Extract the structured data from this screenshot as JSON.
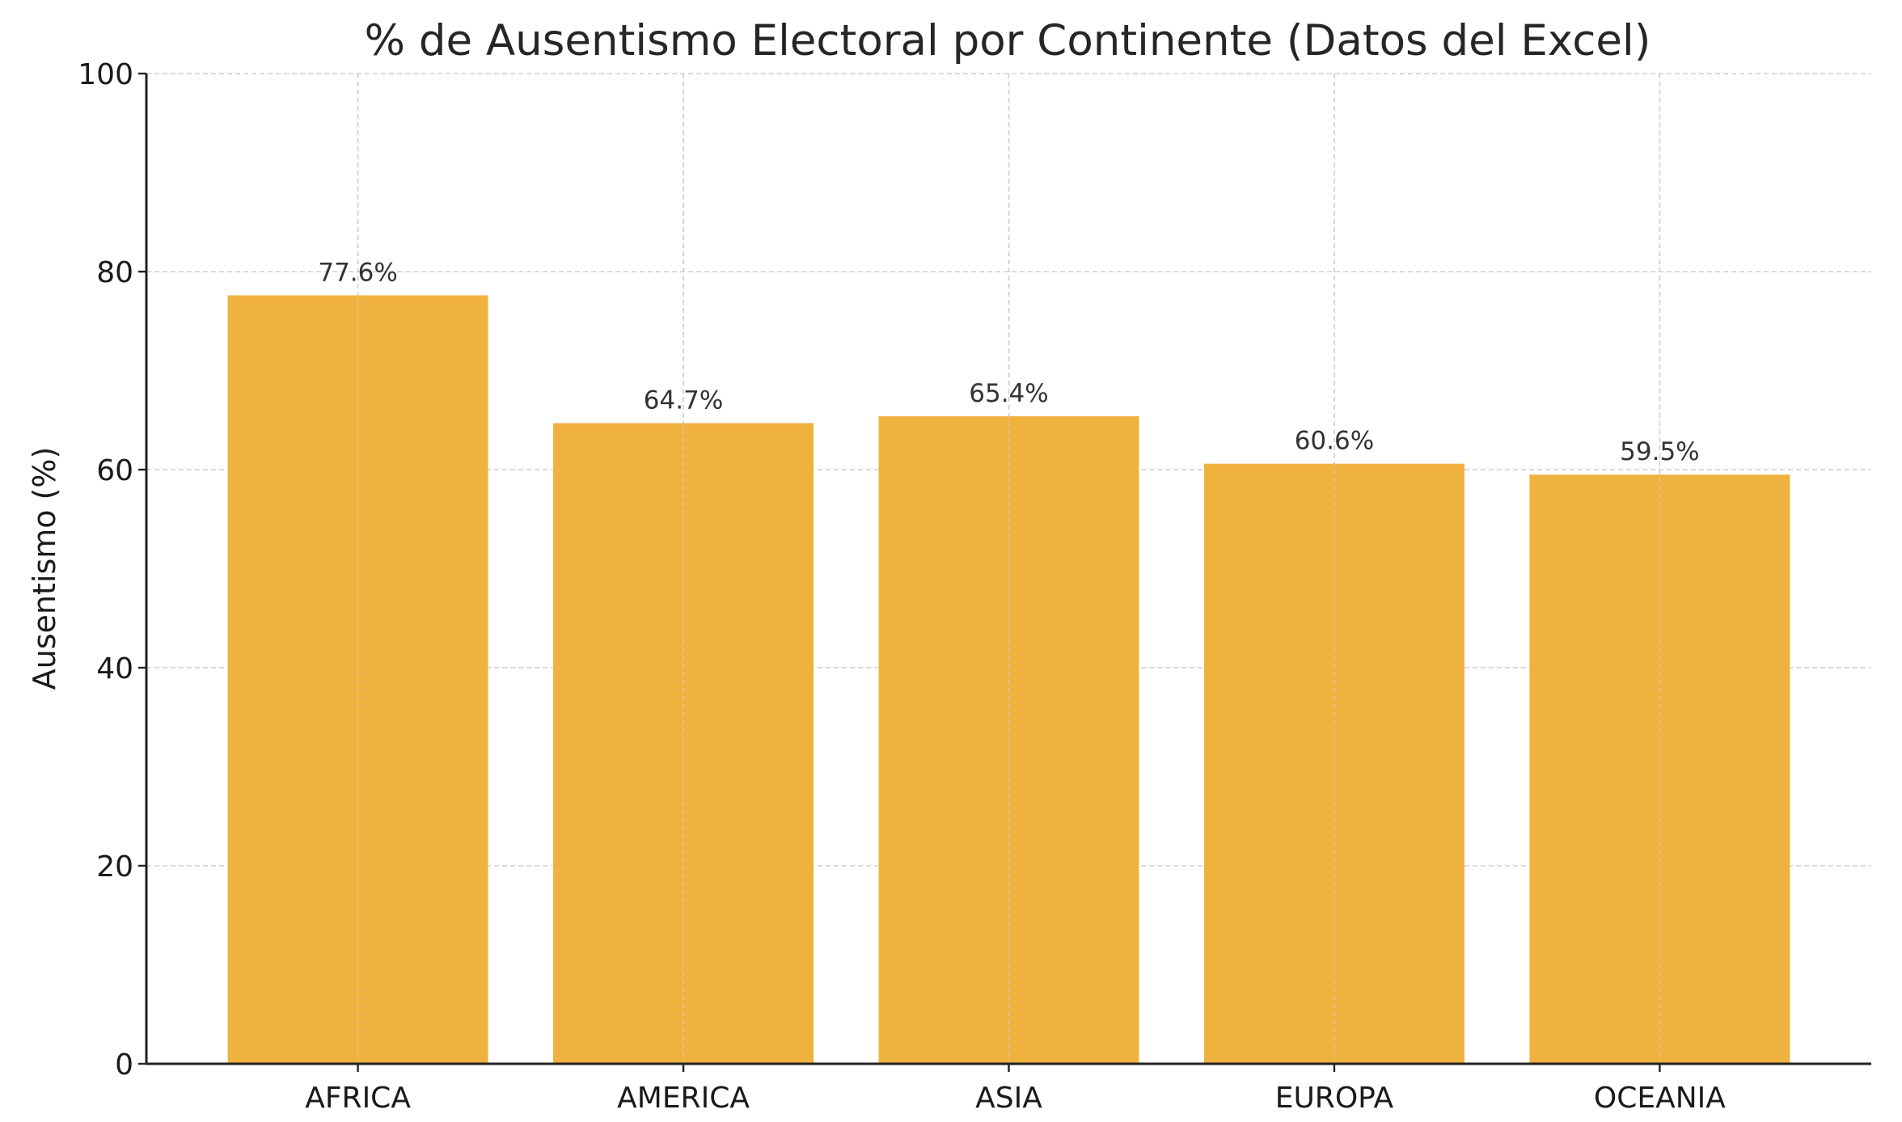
{
  "chart_data": {
    "type": "bar",
    "title": "% de Ausentismo Electoral por Continente (Datos del Excel)",
    "xlabel": "",
    "ylabel": "Ausentismo (%)",
    "categories": [
      "AFRICA",
      "AMERICA",
      "ASIA",
      "EUROPA",
      "OCEANIA"
    ],
    "values": [
      77.6,
      64.7,
      65.4,
      60.6,
      59.5
    ],
    "value_labels": [
      "77.6%",
      "64.7%",
      "65.4%",
      "60.6%",
      "59.5%"
    ],
    "ylim": [
      0,
      100
    ],
    "yticks": [
      0,
      20,
      40,
      60,
      80,
      100
    ],
    "ytick_labels": [
      "0",
      "20",
      "40",
      "60",
      "80",
      "100"
    ],
    "grid": true,
    "bar_color": "#F0B23F"
  }
}
